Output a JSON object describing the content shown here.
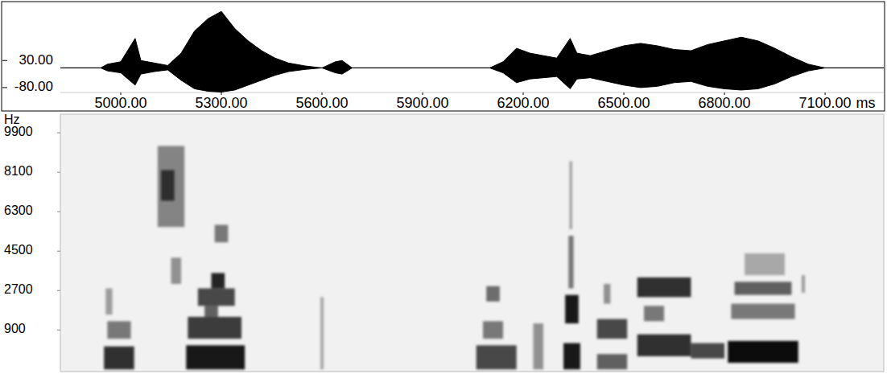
{
  "chart_data": [
    {
      "type": "area",
      "xlabel": "ms",
      "x": [
        4820,
        4940,
        4960,
        5000,
        5043,
        5060,
        5100,
        5140,
        5180,
        5220,
        5260,
        5300,
        5340,
        5380,
        5420,
        5460,
        5500,
        5550,
        5600,
        5640,
        5660,
        5690,
        5800,
        6100,
        6140,
        6180,
        6220,
        6260,
        6300,
        6340,
        6360,
        6400,
        6450,
        6500,
        6550,
        6600,
        6650,
        6700,
        6750,
        6800,
        6850,
        6900,
        6950,
        7000,
        7050,
        7100,
        7275
      ],
      "series": [
        {
          "color": "#000000",
          "values": [
            0,
            0,
            15,
            25,
            120,
            30,
            20,
            10,
            60,
            150,
            200,
            230,
            160,
            110,
            70,
            40,
            20,
            8,
            0,
            25,
            30,
            0,
            0,
            0,
            25,
            80,
            60,
            50,
            40,
            120,
            60,
            50,
            70,
            90,
            100,
            90,
            75,
            70,
            95,
            110,
            125,
            110,
            80,
            45,
            15,
            0,
            0
          ]
        },
        {
          "color": "#000000",
          "values": [
            0,
            0,
            -12,
            -20,
            -70,
            -25,
            -15,
            -8,
            -50,
            -85,
            -95,
            -98,
            -90,
            -70,
            -50,
            -30,
            -15,
            -6,
            0,
            -20,
            -25,
            0,
            0,
            0,
            -20,
            -60,
            -45,
            -40,
            -35,
            -85,
            -45,
            -40,
            -55,
            -70,
            -80,
            -75,
            -60,
            -55,
            -75,
            -85,
            -90,
            -85,
            -65,
            -35,
            -12,
            0,
            0
          ]
        }
      ],
      "xlim": [
        4820,
        7275
      ],
      "xticks": [
        {
          "value": 5000,
          "label": "5000.00"
        },
        {
          "value": 5300,
          "label": "5300.00"
        },
        {
          "value": 5600,
          "label": "5600.00"
        },
        {
          "value": 5900,
          "label": "5900.00"
        },
        {
          "value": 6200,
          "label": "6200.00"
        },
        {
          "value": 6500,
          "label": "6500.00"
        },
        {
          "value": 6800,
          "label": "6800.00"
        },
        {
          "value": 7100,
          "label": "7100.00"
        }
      ],
      "ylim": [
        -100,
        260
      ],
      "yticks": [
        {
          "value": 30,
          "label": "30.00"
        },
        {
          "value": -80,
          "label": "-80.00"
        }
      ]
    },
    {
      "type": "heatmap",
      "ylabel": "Hz",
      "color": "#000000",
      "tick_labels": "y",
      "xlim": [
        4820,
        7275
      ],
      "ylim": [
        -1000,
        10750
      ],
      "yticks": [
        9900,
        8100,
        6300,
        4500,
        2700,
        900
      ],
      "cells": [
        [
          4950,
          5040,
          -900,
          150,
          0.8
        ],
        [
          4960,
          5030,
          500,
          1300,
          0.5
        ],
        [
          4955,
          4975,
          1600,
          2800,
          0.35
        ],
        [
          5110,
          5190,
          5600,
          9300,
          0.45
        ],
        [
          5120,
          5160,
          6800,
          8200,
          0.65
        ],
        [
          5150,
          5180,
          3000,
          4200,
          0.4
        ],
        [
          5195,
          5370,
          -900,
          200,
          0.9
        ],
        [
          5200,
          5360,
          500,
          1500,
          0.75
        ],
        [
          5230,
          5340,
          2000,
          2800,
          0.7
        ],
        [
          5270,
          5310,
          2800,
          3500,
          0.85
        ],
        [
          5280,
          5320,
          4900,
          5700,
          0.5
        ],
        [
          5250,
          5290,
          1500,
          2000,
          0.6
        ],
        [
          5595,
          5605,
          -900,
          2400,
          0.3
        ],
        [
          6060,
          6180,
          -900,
          200,
          0.7
        ],
        [
          6080,
          6140,
          500,
          1300,
          0.5
        ],
        [
          6090,
          6130,
          2200,
          2900,
          0.55
        ],
        [
          6320,
          6370,
          -900,
          300,
          0.9
        ],
        [
          6325,
          6365,
          1200,
          2500,
          0.9
        ],
        [
          6335,
          6350,
          2800,
          5200,
          0.5
        ],
        [
          6338,
          6346,
          5500,
          8600,
          0.35
        ],
        [
          6420,
          6510,
          500,
          1400,
          0.7
        ],
        [
          6420,
          6510,
          -900,
          -200,
          0.6
        ],
        [
          6440,
          6460,
          2100,
          3000,
          0.4
        ],
        [
          6540,
          6700,
          2400,
          3300,
          0.8
        ],
        [
          6540,
          6700,
          -300,
          700,
          0.8
        ],
        [
          6560,
          6620,
          1300,
          2000,
          0.5
        ],
        [
          6700,
          6800,
          -400,
          300,
          0.7
        ],
        [
          6810,
          7020,
          -600,
          400,
          0.95
        ],
        [
          6820,
          7010,
          1400,
          2100,
          0.5
        ],
        [
          6830,
          7000,
          2500,
          3100,
          0.6
        ],
        [
          6860,
          6980,
          3400,
          4400,
          0.3
        ],
        [
          7030,
          7040,
          2600,
          3400,
          0.35
        ],
        [
          6230,
          6260,
          -900,
          1200,
          0.4
        ]
      ]
    }
  ]
}
